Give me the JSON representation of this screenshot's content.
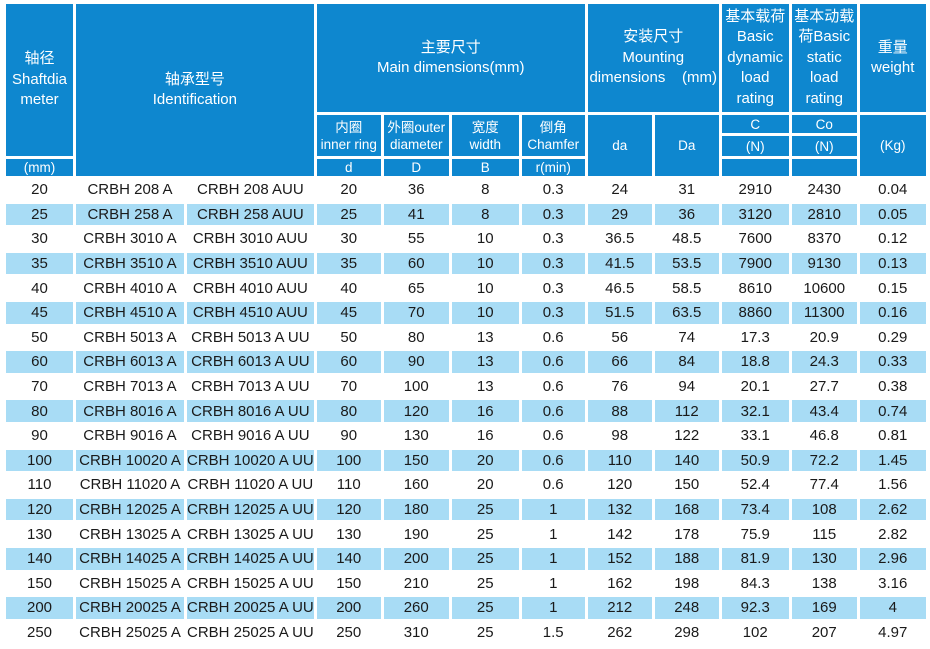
{
  "colors": {
    "header_blue": "#0e87cf",
    "row_stripe_blue": "#a8dcf5",
    "text_dark": "#1a1a1a",
    "header_text": "#ffffff"
  },
  "table": {
    "header": {
      "shaft_diameter": "轴径\nShaftdia\nmeter",
      "shaft_diameter_unit": "(mm)",
      "identification": "轴承型号\nIdentification",
      "main_dimensions": "主要尺寸\nMain dimensions(mm)",
      "inner_ring": "内圈\ninner ring",
      "outer_diameter": "外圈outer\ndiameter",
      "width": "宽度\nwidth",
      "chamfer": "倒角\nChamfer",
      "d": "d",
      "D": "D",
      "B": "B",
      "r_min": "r(min)",
      "mounting_dimensions": "安装尺寸\nMounting\ndimensions    (mm)",
      "da": "da",
      "Da": "Da",
      "dynamic_load": "基本载荷\nBasic\ndynamic\nload\nrating",
      "static_load": "基本动载\n荷Basic\nstatic\nload\nrating",
      "C": "C",
      "Co": "Co",
      "N_dynamic": "(N)",
      "N_static": "(N)",
      "weight": "重量\nweight",
      "weight_unit": "(Kg)"
    },
    "columns": [
      "shaft_dia",
      "model_a",
      "model_auu",
      "d",
      "D",
      "B",
      "r_min",
      "da",
      "Da",
      "C",
      "Co",
      "weight"
    ],
    "rows": [
      [
        "20",
        "CRBH 208 A",
        "CRBH 208 AUU",
        "20",
        "36",
        "8",
        "0.3",
        "24",
        "31",
        "2910",
        "2430",
        "0.04"
      ],
      [
        "25",
        "CRBH 258 A",
        "CRBH 258 AUU",
        "25",
        "41",
        "8",
        "0.3",
        "29",
        "36",
        "3120",
        "2810",
        "0.05"
      ],
      [
        "30",
        "CRBH 3010 A",
        "CRBH 3010 AUU",
        "30",
        "55",
        "10",
        "0.3",
        "36.5",
        "48.5",
        "7600",
        "8370",
        "0.12"
      ],
      [
        "35",
        "CRBH 3510 A",
        "CRBH 3510 AUU",
        "35",
        "60",
        "10",
        "0.3",
        "41.5",
        "53.5",
        "7900",
        "9130",
        "0.13"
      ],
      [
        "40",
        "CRBH 4010 A",
        "CRBH 4010 AUU",
        "40",
        "65",
        "10",
        "0.3",
        "46.5",
        "58.5",
        "8610",
        "10600",
        "0.15"
      ],
      [
        "45",
        "CRBH 4510 A",
        "CRBH 4510 AUU",
        "45",
        "70",
        "10",
        "0.3",
        "51.5",
        "63.5",
        "8860",
        "11300",
        "0.16"
      ],
      [
        "50",
        "CRBH 5013 A",
        "CRBH 5013 A UU",
        "50",
        "80",
        "13",
        "0.6",
        "56",
        "74",
        "17.3",
        "20.9",
        "0.29"
      ],
      [
        "60",
        "CRBH 6013 A",
        "CRBH 6013 A UU",
        "60",
        "90",
        "13",
        "0.6",
        "66",
        "84",
        "18.8",
        "24.3",
        "0.33"
      ],
      [
        "70",
        "CRBH 7013 A",
        "CRBH 7013 A UU",
        "70",
        "100",
        "13",
        "0.6",
        "76",
        "94",
        "20.1",
        "27.7",
        "0.38"
      ],
      [
        "80",
        "CRBH 8016 A",
        "CRBH 8016 A UU",
        "80",
        "120",
        "16",
        "0.6",
        "88",
        "112",
        "32.1",
        "43.4",
        "0.74"
      ],
      [
        "90",
        "CRBH 9016 A",
        "CRBH 9016 A UU",
        "90",
        "130",
        "16",
        "0.6",
        "98",
        "122",
        "33.1",
        "46.8",
        "0.81"
      ],
      [
        "100",
        "CRBH 10020 A",
        "CRBH 10020 A UU",
        "100",
        "150",
        "20",
        "0.6",
        "110",
        "140",
        "50.9",
        "72.2",
        "1.45"
      ],
      [
        "110",
        "CRBH 11020 A",
        "CRBH 11020 A UU",
        "110",
        "160",
        "20",
        "0.6",
        "120",
        "150",
        "52.4",
        "77.4",
        "1.56"
      ],
      [
        "120",
        "CRBH 12025 A",
        "CRBH 12025 A UU",
        "120",
        "180",
        "25",
        "1",
        "132",
        "168",
        "73.4",
        "108",
        "2.62"
      ],
      [
        "130",
        "CRBH 13025 A",
        "CRBH 13025 A UU",
        "130",
        "190",
        "25",
        "1",
        "142",
        "178",
        "75.9",
        "115",
        "2.82"
      ],
      [
        "140",
        "CRBH 14025 A",
        "CRBH 14025 A UU",
        "140",
        "200",
        "25",
        "1",
        "152",
        "188",
        "81.9",
        "130",
        "2.96"
      ],
      [
        "150",
        "CRBH 15025 A",
        "CRBH 15025 A UU",
        "150",
        "210",
        "25",
        "1",
        "162",
        "198",
        "84.3",
        "138",
        "3.16"
      ],
      [
        "200",
        "CRBH 20025 A",
        "CRBH 20025 A UU",
        "200",
        "260",
        "25",
        "1",
        "212",
        "248",
        "92.3",
        "169",
        "4"
      ],
      [
        "250",
        "CRBH 25025 A",
        "CRBH 25025 A UU",
        "250",
        "310",
        "25",
        "1.5",
        "262",
        "298",
        "102",
        "207",
        "4.97"
      ]
    ]
  }
}
